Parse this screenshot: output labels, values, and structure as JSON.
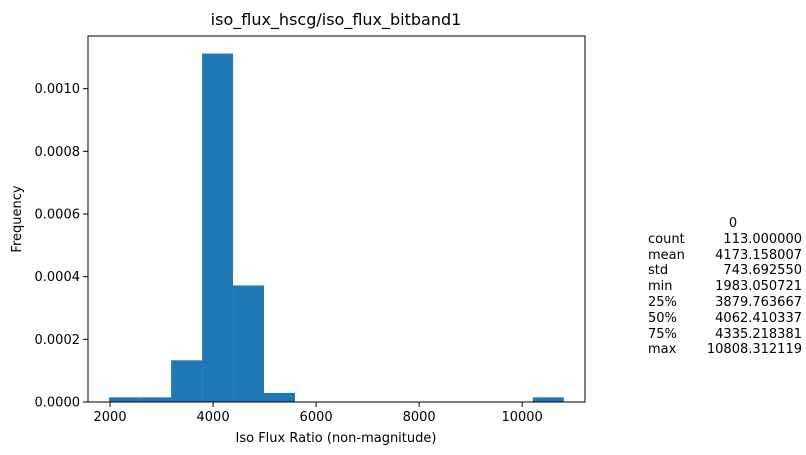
{
  "chart_data": {
    "type": "bar",
    "title": "iso_flux_hscg/iso_flux_bitband1",
    "xlabel": "Iso Flux Ratio (non-magnitude)",
    "ylabel": "Frequency",
    "xlim": [
      1572,
      11220
    ],
    "ylim": [
      0,
      0.001168
    ],
    "xticks": [
      2000,
      4000,
      6000,
      8000,
      10000
    ],
    "xtick_labels": [
      "2000",
      "4000",
      "6000",
      "8000",
      "10000"
    ],
    "yticks": [
      0,
      0.0002,
      0.0004,
      0.0006,
      0.0008,
      0.001
    ],
    "ytick_labels": [
      "0.0000",
      "0.0002",
      "0.0004",
      "0.0006",
      "0.0008",
      "0.0010"
    ],
    "bar_color": "#1f77b4",
    "grid": false,
    "bins": [
      {
        "x0": 1983.05,
        "x1": 2584.25,
        "value": 1.47e-05
      },
      {
        "x0": 2584.25,
        "x1": 3185.45,
        "value": 1.47e-05
      },
      {
        "x0": 3185.45,
        "x1": 3786.65,
        "value": 0.000133
      },
      {
        "x0": 3786.65,
        "x1": 4387.85,
        "value": 0.001112
      },
      {
        "x0": 4387.85,
        "x1": 4989.05,
        "value": 0.000372
      },
      {
        "x0": 4989.05,
        "x1": 5590.25,
        "value": 2.9e-05
      },
      {
        "x0": 10207.11,
        "x1": 10808.31,
        "value": 1.47e-05
      }
    ]
  },
  "stats": {
    "header": "0",
    "rows": [
      {
        "label": "count",
        "value": "113.000000"
      },
      {
        "label": "mean",
        "value": "4173.158007"
      },
      {
        "label": "std",
        "value": "743.692550"
      },
      {
        "label": "min",
        "value": "1983.050721"
      },
      {
        "label": "25%",
        "value": "3879.763667"
      },
      {
        "label": "50%",
        "value": "4062.410337"
      },
      {
        "label": "75%",
        "value": "4335.218381"
      },
      {
        "label": "max",
        "value": "10808.312119"
      }
    ]
  }
}
